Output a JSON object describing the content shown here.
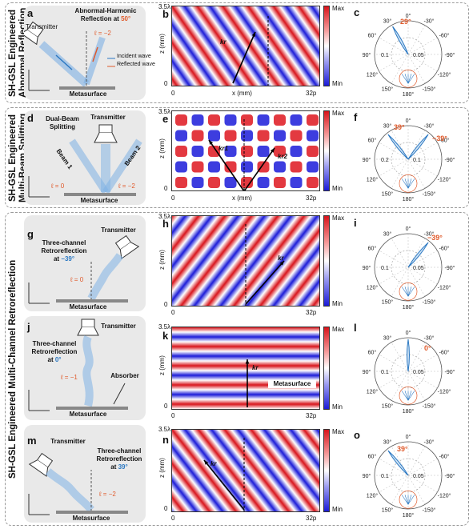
{
  "section_labels": {
    "s1": [
      "SH-GSL Engineered",
      "Abnormal Reflection"
    ],
    "s2": [
      "SH-GSL Engineered",
      "Multi-Beam Splitting"
    ],
    "s3": "SH-GSL Engineered Multi-Channel Retroreflection"
  },
  "colorbar": {
    "max": "Max",
    "min": "Min"
  },
  "axes": {
    "z_label": "z (mm)",
    "x_label": "x (mm)",
    "x_start": "0",
    "x_end": "32p",
    "z_top": "3.5λ",
    "z_zero": "0"
  },
  "panels": {
    "a": {
      "letter": "a",
      "title": "Abnormal-Harmonic",
      "subtitle_prefix": "Reflection at ",
      "angle": "50°",
      "transmitter": "Transmitter",
      "ell": "ℓ = −2",
      "legend_incident": "Incident wave",
      "legend_reflected": "Reflected wave",
      "metasurface": "Metasurface"
    },
    "b": {
      "letter": "b",
      "k": "kr"
    },
    "c": {
      "letter": "c",
      "angle": "29°"
    },
    "d": {
      "letter": "d",
      "title": "Dual-Beam",
      "title2": "Splitting",
      "transmitter": "Transmitter",
      "beam1": "Beam 1",
      "beam2": "Beam 2",
      "ell1": "ℓ = 0",
      "ell2": "ℓ = −2",
      "metasurface": "Metasurface"
    },
    "e": {
      "letter": "e",
      "k1": "kr1",
      "k2": "kr2"
    },
    "f": {
      "letter": "f",
      "angle1": "39°",
      "angle2": "−39°"
    },
    "g": {
      "letter": "g",
      "title": "Three-channel",
      "title2": "Retroreflection",
      "title3_prefix": "at ",
      "angle": "−39°",
      "transmitter": "Transmitter",
      "ell": "ℓ = 0",
      "metasurface": "Metasurface"
    },
    "h": {
      "letter": "h",
      "k": "kr"
    },
    "i": {
      "letter": "i",
      "angle": "−39°"
    },
    "j": {
      "letter": "j",
      "title": "Three-channel",
      "title2": "Retroreflection",
      "title3_prefix": "at ",
      "angle": "0°",
      "transmitter": "Transmitter",
      "ell": "ℓ = −1",
      "absorber": "Absorber",
      "metasurface": "Metasurface"
    },
    "k": {
      "letter": "k",
      "k": "kr",
      "metasurface": "Metasurface"
    },
    "l": {
      "letter": "l",
      "angle": "0°"
    },
    "m": {
      "letter": "m",
      "title": "Three-channel",
      "title2": "Retroreflection",
      "title3_prefix": "at ",
      "angle": "39°",
      "transmitter": "Transmitter",
      "ell": "ℓ = −2",
      "metasurface": "Metasurface"
    },
    "n": {
      "letter": "n",
      "k": "kr"
    },
    "o": {
      "letter": "o",
      "angle": "39°"
    }
  },
  "polar": {
    "angle_labels": [
      "0°",
      "30°",
      "-30°",
      "60°",
      "-60°",
      "90°",
      "-90°",
      "120°",
      "-120°",
      "150°",
      "-150°",
      "180°"
    ],
    "radial_labels": [
      "0.1",
      "0.05"
    ],
    "radial_labels_f": [
      "0.2",
      "0.1"
    ],
    "colors": {
      "lobe": "#2b78c2",
      "highlight": "#e05a2b"
    }
  }
}
